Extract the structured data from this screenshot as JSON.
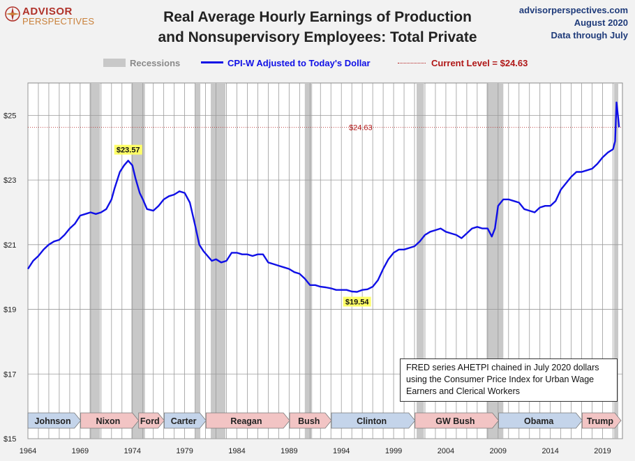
{
  "header": {
    "logo_line1": "ADVISOR",
    "logo_line2": "PERSPECTIVES",
    "title_line1": "Real Average Hourly Earnings of Production",
    "title_line2": "and Nonsupervisory Employees: Total Private",
    "source_site": "advisorperspectives.com",
    "source_date": "August 2020",
    "source_through": "Data through July"
  },
  "legend": {
    "recessions": "Recessions",
    "series": "CPI-W Adjusted to Today's Dollar",
    "current": "Current Level = $24.63"
  },
  "annotation": {
    "line1": "FRED series AHETPI chained in July 2020 dollars",
    "line2": "using the Consumer Price Index for Urban Wage",
    "line3": "Earners and Clerical Workers"
  },
  "colors": {
    "series": "#1010e6",
    "recession": "#c8c8c8",
    "current_level": "#b01818",
    "republican": "#f2c4c4",
    "democrat": "#c4d4ea",
    "callout": "#ffff66"
  },
  "chart_data": {
    "type": "line",
    "xlim": [
      1964,
      2020.9
    ],
    "ylim": [
      15,
      26
    ],
    "y_ticks": [
      15,
      17,
      19,
      21,
      23,
      25
    ],
    "y_tick_labels": [
      "$15",
      "$17",
      "$19",
      "$21",
      "$23",
      "$25"
    ],
    "x_ticks": [
      1964,
      1969,
      1974,
      1979,
      1984,
      1989,
      1994,
      1999,
      2004,
      2009,
      2014,
      2019
    ],
    "x_tick_labels": [
      "1964",
      "1969",
      "1974",
      "1979",
      "1984",
      "1989",
      "1994",
      "1999",
      "2004",
      "2009",
      "2014",
      "2019"
    ],
    "grid": "vertical-yearly",
    "series": [
      {
        "name": "CPI-W Adjusted to Today's Dollar",
        "points": [
          [
            1964.0,
            20.25
          ],
          [
            1964.5,
            20.5
          ],
          [
            1965.0,
            20.65
          ],
          [
            1965.5,
            20.85
          ],
          [
            1966.0,
            21.0
          ],
          [
            1966.5,
            21.1
          ],
          [
            1967.0,
            21.15
          ],
          [
            1967.5,
            21.3
          ],
          [
            1968.0,
            21.5
          ],
          [
            1968.5,
            21.65
          ],
          [
            1969.0,
            21.9
          ],
          [
            1969.5,
            21.95
          ],
          [
            1970.0,
            22.0
          ],
          [
            1970.5,
            21.95
          ],
          [
            1971.0,
            22.0
          ],
          [
            1971.5,
            22.1
          ],
          [
            1972.0,
            22.4
          ],
          [
            1972.3,
            22.75
          ],
          [
            1972.8,
            23.25
          ],
          [
            1973.2,
            23.45
          ],
          [
            1973.6,
            23.6
          ],
          [
            1974.0,
            23.45
          ],
          [
            1974.3,
            23.05
          ],
          [
            1974.7,
            22.6
          ],
          [
            1975.0,
            22.4
          ],
          [
            1975.4,
            22.1
          ],
          [
            1976.0,
            22.05
          ],
          [
            1976.5,
            22.2
          ],
          [
            1977.0,
            22.4
          ],
          [
            1977.5,
            22.5
          ],
          [
            1978.0,
            22.55
          ],
          [
            1978.5,
            22.65
          ],
          [
            1979.0,
            22.6
          ],
          [
            1979.5,
            22.3
          ],
          [
            1980.0,
            21.6
          ],
          [
            1980.4,
            21.0
          ],
          [
            1980.8,
            20.8
          ],
          [
            1981.2,
            20.65
          ],
          [
            1981.6,
            20.5
          ],
          [
            1982.0,
            20.55
          ],
          [
            1982.5,
            20.45
          ],
          [
            1983.0,
            20.5
          ],
          [
            1983.5,
            20.75
          ],
          [
            1984.0,
            20.75
          ],
          [
            1984.5,
            20.7
          ],
          [
            1985.0,
            20.7
          ],
          [
            1985.5,
            20.65
          ],
          [
            1986.0,
            20.7
          ],
          [
            1986.5,
            20.7
          ],
          [
            1987.0,
            20.45
          ],
          [
            1987.5,
            20.4
          ],
          [
            1988.0,
            20.35
          ],
          [
            1988.5,
            20.3
          ],
          [
            1989.0,
            20.25
          ],
          [
            1989.5,
            20.15
          ],
          [
            1990.0,
            20.1
          ],
          [
            1990.5,
            19.95
          ],
          [
            1991.0,
            19.75
          ],
          [
            1991.5,
            19.75
          ],
          [
            1992.0,
            19.7
          ],
          [
            1992.5,
            19.68
          ],
          [
            1993.0,
            19.65
          ],
          [
            1993.5,
            19.6
          ],
          [
            1994.0,
            19.6
          ],
          [
            1994.5,
            19.6
          ],
          [
            1995.0,
            19.55
          ],
          [
            1995.5,
            19.54
          ],
          [
            1996.0,
            19.6
          ],
          [
            1996.5,
            19.62
          ],
          [
            1997.0,
            19.7
          ],
          [
            1997.5,
            19.9
          ],
          [
            1998.0,
            20.25
          ],
          [
            1998.5,
            20.55
          ],
          [
            1999.0,
            20.75
          ],
          [
            1999.5,
            20.85
          ],
          [
            2000.0,
            20.85
          ],
          [
            2000.5,
            20.9
          ],
          [
            2001.0,
            20.95
          ],
          [
            2001.5,
            21.1
          ],
          [
            2002.0,
            21.3
          ],
          [
            2002.5,
            21.4
          ],
          [
            2003.0,
            21.45
          ],
          [
            2003.5,
            21.5
          ],
          [
            2004.0,
            21.4
          ],
          [
            2004.5,
            21.35
          ],
          [
            2005.0,
            21.3
          ],
          [
            2005.5,
            21.2
          ],
          [
            2006.0,
            21.35
          ],
          [
            2006.5,
            21.5
          ],
          [
            2007.0,
            21.55
          ],
          [
            2007.5,
            21.5
          ],
          [
            2008.0,
            21.5
          ],
          [
            2008.4,
            21.25
          ],
          [
            2008.7,
            21.5
          ],
          [
            2009.0,
            22.2
          ],
          [
            2009.5,
            22.4
          ],
          [
            2010.0,
            22.4
          ],
          [
            2010.5,
            22.35
          ],
          [
            2011.0,
            22.3
          ],
          [
            2011.5,
            22.1
          ],
          [
            2012.0,
            22.05
          ],
          [
            2012.5,
            22.0
          ],
          [
            2013.0,
            22.15
          ],
          [
            2013.5,
            22.2
          ],
          [
            2014.0,
            22.2
          ],
          [
            2014.5,
            22.35
          ],
          [
            2015.0,
            22.7
          ],
          [
            2015.5,
            22.9
          ],
          [
            2016.0,
            23.1
          ],
          [
            2016.5,
            23.25
          ],
          [
            2017.0,
            23.25
          ],
          [
            2017.5,
            23.3
          ],
          [
            2018.0,
            23.35
          ],
          [
            2018.5,
            23.5
          ],
          [
            2019.0,
            23.7
          ],
          [
            2019.5,
            23.85
          ],
          [
            2020.0,
            23.95
          ],
          [
            2020.2,
            24.2
          ],
          [
            2020.33,
            25.4
          ],
          [
            2020.5,
            24.9
          ],
          [
            2020.58,
            24.63
          ]
        ]
      }
    ],
    "recessions": [
      [
        1969.9,
        1970.9
      ],
      [
        1973.9,
        1975.2
      ],
      [
        1980.0,
        1980.5
      ],
      [
        1981.5,
        1982.9
      ],
      [
        1990.5,
        1991.2
      ],
      [
        2001.2,
        2001.9
      ],
      [
        2007.9,
        2009.5
      ],
      [
        2020.1,
        2020.5
      ]
    ],
    "current_level": 24.63,
    "current_label": "$24.63",
    "callouts": [
      {
        "label": "$23.57",
        "x": 1973.6,
        "y": 23.57
      },
      {
        "label": "$19.54",
        "x": 1995.5,
        "y": 19.54
      }
    ],
    "presidents": [
      {
        "name": "Johnson",
        "start": 1964.0,
        "end": 1969.05,
        "party": "D"
      },
      {
        "name": "Nixon",
        "start": 1969.05,
        "end": 1974.6,
        "party": "R"
      },
      {
        "name": "Ford",
        "start": 1974.6,
        "end": 1977.05,
        "party": "R"
      },
      {
        "name": "Carter",
        "start": 1977.05,
        "end": 1981.05,
        "party": "D"
      },
      {
        "name": "Reagan",
        "start": 1981.05,
        "end": 1989.05,
        "party": "R"
      },
      {
        "name": "Bush",
        "start": 1989.05,
        "end": 1993.05,
        "party": "R"
      },
      {
        "name": "Clinton",
        "start": 1993.05,
        "end": 2001.05,
        "party": "D"
      },
      {
        "name": "GW Bush",
        "start": 2001.05,
        "end": 2009.05,
        "party": "R"
      },
      {
        "name": "Obama",
        "start": 2009.05,
        "end": 2017.05,
        "party": "D"
      },
      {
        "name": "Trump",
        "start": 2017.05,
        "end": 2020.9,
        "party": "R"
      }
    ]
  }
}
